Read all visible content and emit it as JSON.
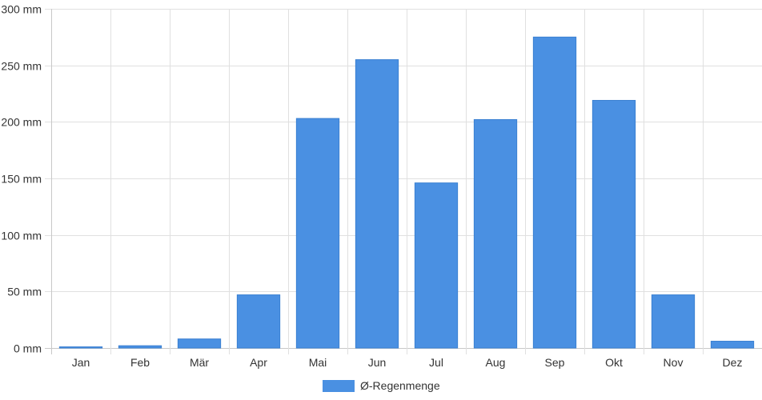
{
  "chart_data": {
    "type": "bar",
    "categories": [
      "Jan",
      "Feb",
      "Mär",
      "Apr",
      "Mai",
      "Jun",
      "Jul",
      "Aug",
      "Sep",
      "Okt",
      "Nov",
      "Dez"
    ],
    "series": [
      {
        "name": "Ø-Regenmenge",
        "values": [
          1,
          2,
          8,
          47,
          203,
          255,
          146,
          202,
          275,
          219,
          47,
          6
        ]
      }
    ],
    "ylim": [
      0,
      300
    ],
    "yticks": [
      0,
      50,
      100,
      150,
      200,
      250,
      300
    ],
    "ytick_labels": [
      "0 mm",
      "50 mm",
      "100 mm",
      "150 mm",
      "200 mm",
      "250 mm",
      "300 mm"
    ],
    "grid": true,
    "legend_position": "bottom-center",
    "colors": {
      "bar": "#4a90e2",
      "bar_border": "#3a80d2",
      "grid": "#e0e0e0",
      "axis": "#c8c8c8"
    }
  }
}
